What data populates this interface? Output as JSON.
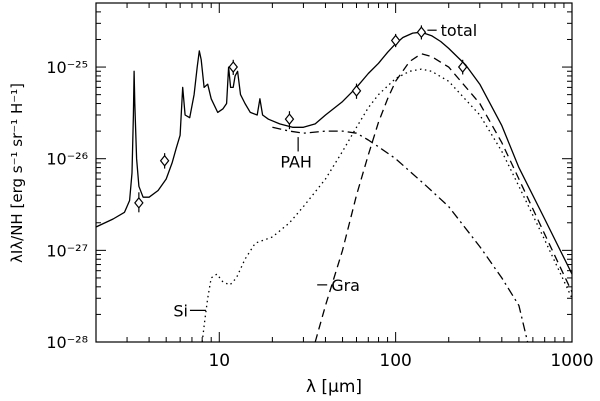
{
  "chart_data": {
    "type": "line",
    "title": "",
    "xlabel": "λ [μm]",
    "ylabel": "λIλ/NH [erg s⁻¹ sr⁻¹ H⁻¹]",
    "xscale": "log",
    "yscale": "log",
    "xlim": [
      2,
      1000
    ],
    "ylim": [
      1e-28,
      5e-25
    ],
    "x_ticks": [
      {
        "value": 10,
        "label": "10"
      },
      {
        "value": 100,
        "label": "100"
      },
      {
        "value": 1000,
        "label": "1000"
      }
    ],
    "y_ticks": [
      {
        "value": 1e-28,
        "label": "10⁻²⁸"
      },
      {
        "value": 1e-27,
        "label": "10⁻²⁷"
      },
      {
        "value": 1e-26,
        "label": "10⁻²⁶"
      },
      {
        "value": 1e-25,
        "label": "10⁻²⁵"
      }
    ],
    "grid": false,
    "legend": "none",
    "series": [
      {
        "name": "total",
        "style": "solid",
        "points": [
          [
            2,
            1.8e-27
          ],
          [
            2.5,
            2.2e-27
          ],
          [
            2.9,
            2.6e-27
          ],
          [
            3.1,
            3.5e-27
          ],
          [
            3.2,
            7e-27
          ],
          [
            3.26,
            3e-26
          ],
          [
            3.29,
            9e-26
          ],
          [
            3.32,
            4e-26
          ],
          [
            3.4,
            1e-26
          ],
          [
            3.5,
            5e-27
          ],
          [
            3.7,
            3.8e-27
          ],
          [
            4,
            3.8e-27
          ],
          [
            4.5,
            4.5e-27
          ],
          [
            5,
            6e-27
          ],
          [
            5.4,
            9e-27
          ],
          [
            5.7,
            1.3e-26
          ],
          [
            6.0,
            1.8e-26
          ],
          [
            6.2,
            6e-26
          ],
          [
            6.4,
            3e-26
          ],
          [
            6.8,
            2.8e-26
          ],
          [
            7.2,
            5e-26
          ],
          [
            7.5,
            1e-25
          ],
          [
            7.7,
            1.5e-25
          ],
          [
            7.9,
            1.2e-25
          ],
          [
            8.2,
            6e-26
          ],
          [
            8.6,
            6.5e-26
          ],
          [
            9.0,
            4.5e-26
          ],
          [
            9.8,
            3.2e-26
          ],
          [
            10.5,
            3.5e-26
          ],
          [
            11.0,
            4e-26
          ],
          [
            11.3,
            1e-25
          ],
          [
            11.6,
            6e-26
          ],
          [
            12.0,
            6e-26
          ],
          [
            12.3,
            8e-26
          ],
          [
            12.7,
            9e-26
          ],
          [
            13.2,
            5e-26
          ],
          [
            14,
            4e-26
          ],
          [
            15,
            3.2e-26
          ],
          [
            16.4,
            3e-26
          ],
          [
            17,
            4.5e-26
          ],
          [
            17.6,
            3e-26
          ],
          [
            19,
            2.7e-26
          ],
          [
            22,
            2.4e-26
          ],
          [
            26,
            2.2e-26
          ],
          [
            30,
            2.2e-26
          ],
          [
            35,
            2.4e-26
          ],
          [
            40,
            3e-26
          ],
          [
            50,
            4.2e-26
          ],
          [
            60,
            6e-26
          ],
          [
            70,
            8.5e-26
          ],
          [
            80,
            1.1e-25
          ],
          [
            90,
            1.45e-25
          ],
          [
            100,
            1.8e-25
          ],
          [
            110,
            2.1e-25
          ],
          [
            125,
            2.35e-25
          ],
          [
            140,
            2.4e-25
          ],
          [
            160,
            2.2e-25
          ],
          [
            180,
            1.9e-25
          ],
          [
            200,
            1.6e-25
          ],
          [
            250,
            1.05e-25
          ],
          [
            300,
            6.5e-26
          ],
          [
            400,
            2.3e-26
          ],
          [
            500,
            8e-27
          ],
          [
            700,
            2.2e-27
          ],
          [
            1000,
            5.5e-28
          ]
        ]
      },
      {
        "name": "PAH",
        "style": "dashdot",
        "points": [
          [
            20,
            2.2e-26
          ],
          [
            25,
            2e-26
          ],
          [
            30,
            1.9e-26
          ],
          [
            40,
            2e-26
          ],
          [
            50,
            2e-26
          ],
          [
            60,
            1.9e-26
          ],
          [
            70,
            1.6e-26
          ],
          [
            80,
            1.35e-26
          ],
          [
            100,
            1e-26
          ],
          [
            150,
            5e-27
          ],
          [
            200,
            3e-27
          ],
          [
            300,
            1.1e-27
          ],
          [
            400,
            5e-28
          ],
          [
            500,
            2.5e-28
          ],
          [
            560,
            1e-28
          ]
        ]
      },
      {
        "name": "Gra",
        "style": "dashed",
        "points": [
          [
            35,
            1e-28
          ],
          [
            40,
            2.5e-28
          ],
          [
            50,
            1e-27
          ],
          [
            60,
            4e-27
          ],
          [
            70,
            1.1e-26
          ],
          [
            80,
            2.5e-26
          ],
          [
            90,
            4.5e-26
          ],
          [
            100,
            7e-26
          ],
          [
            120,
            1.15e-25
          ],
          [
            140,
            1.4e-25
          ],
          [
            160,
            1.3e-25
          ],
          [
            200,
            1e-25
          ],
          [
            300,
            4e-26
          ],
          [
            400,
            1.5e-26
          ],
          [
            500,
            6e-27
          ],
          [
            700,
            1.5e-27
          ],
          [
            1000,
            3.5e-28
          ]
        ]
      },
      {
        "name": "Si",
        "style": "dotted",
        "points": [
          [
            8,
            1e-28
          ],
          [
            8.3,
            1.8e-28
          ],
          [
            8.6,
            3e-28
          ],
          [
            9,
            5e-28
          ],
          [
            9.7,
            5.5e-28
          ],
          [
            10.5,
            4.5e-28
          ],
          [
            11.5,
            4.2e-28
          ],
          [
            12.5,
            5e-28
          ],
          [
            14,
            8e-28
          ],
          [
            16,
            1.2e-27
          ],
          [
            18,
            1.3e-27
          ],
          [
            20,
            1.4e-27
          ],
          [
            25,
            2e-27
          ],
          [
            30,
            3e-27
          ],
          [
            40,
            6e-27
          ],
          [
            50,
            1.2e-26
          ],
          [
            60,
            2.2e-26
          ],
          [
            70,
            3.6e-26
          ],
          [
            80,
            5e-26
          ],
          [
            100,
            7.5e-26
          ],
          [
            120,
            9e-26
          ],
          [
            140,
            9.5e-26
          ],
          [
            160,
            9e-26
          ],
          [
            200,
            7e-26
          ],
          [
            300,
            3e-26
          ],
          [
            400,
            1.2e-26
          ],
          [
            500,
            5e-27
          ],
          [
            700,
            1.3e-27
          ],
          [
            1000,
            3e-28
          ]
        ]
      }
    ],
    "observations": {
      "marker": "diamond",
      "points": [
        {
          "x": 3.5,
          "y": 3.3e-27,
          "err_up": 4.3e-27,
          "err_down": 2.6e-27
        },
        {
          "x": 4.9,
          "y": 9.5e-27,
          "err_up": 1.15e-26,
          "err_down": 7.8e-27
        },
        {
          "x": 12,
          "y": 1e-25,
          "err_up": 1.2e-25,
          "err_down": 8.2e-26
        },
        {
          "x": 25,
          "y": 2.7e-26,
          "err_up": 3.3e-26,
          "err_down": 2.1e-26
        },
        {
          "x": 60,
          "y": 5.5e-26,
          "err_up": 6.6e-26,
          "err_down": 4.5e-26
        },
        {
          "x": 100,
          "y": 1.95e-25,
          "err_up": 2.3e-25,
          "err_down": 1.65e-25
        },
        {
          "x": 140,
          "y": 2.4e-25,
          "err_up": 2.85e-25,
          "err_down": 2e-25
        },
        {
          "x": 240,
          "y": 1e-25,
          "err_up": 1.2e-25,
          "err_down": 8.3e-26
        }
      ]
    },
    "annotations": [
      {
        "text": "total",
        "x": 180,
        "y": 2.1e-25
      },
      {
        "text": "PAH",
        "x": 27,
        "y": 1.2e-26
      },
      {
        "text": "Gra",
        "x": 45,
        "y": 3.8e-28
      },
      {
        "text": "Si",
        "x": 6,
        "y": 2e-28
      }
    ]
  }
}
